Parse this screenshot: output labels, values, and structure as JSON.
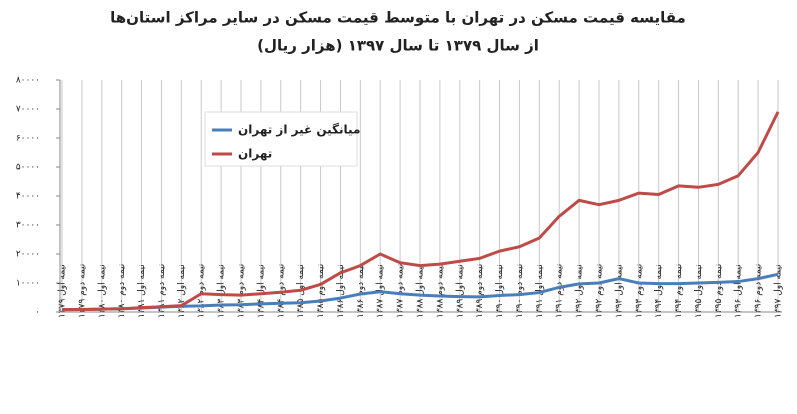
{
  "chart_data": {
    "type": "line",
    "title": "مقایسه قیمت مسکن در تهران با متوسط قیمت مسکن در سایر مراکز استان‌ها",
    "subtitle": "از سال ۱۳۷۹ تا سال ۱۳۹۷ (هزار ریال)",
    "categories": [
      "نیمه اول ۱۳۷۹",
      "نیمه دوم ۱۳۷۹",
      "نیمه اول ۱۳۸۰",
      "نیمه دوم ۱۳۸۰",
      "نیمه اول ۱۳۸۱",
      "نیمه دوم ۱۳۸۱",
      "نیمه اول ۱۳۸۲",
      "نیمه دوم ۱۳۸۲",
      "نیمه اول ۱۳۸۳",
      "نیمه دوم ۱۳۸۳",
      "نیمه اول ۱۳۸۴",
      "نیمه دوم ۱۳۸۴",
      "نیمه اول ۱۳۸۵",
      "نیمه دوم ۱۳۸۵",
      "نیمه اول ۱۳۸۶",
      "نیمه دوم ۱۳۸۶",
      "نیمه اول ۱۳۸۷",
      "نیمه دوم ۱۳۸۷",
      "نیمه اول ۱۳۸۸",
      "نیمه دوم ۱۳۸۸",
      "نیمه اول ۱۳۸۹",
      "نیمه دوم ۱۳۸۹",
      "نیمه اول ۱۳۹۰",
      "نیمه دوم ۱۳۹۰",
      "نیمه اول ۱۳۹۱",
      "نیمه دوم ۱۳۹۱",
      "نیمه اول ۱۳۹۲",
      "نیمه دوم ۱۳۹۲",
      "نیمه اول ۱۳۹۳",
      "نیمه دوم ۱۳۹۳",
      "نیمه اول ۱۳۹۴",
      "نیمه دوم ۱۳۹۴",
      "نیمه اول ۱۳۹۵",
      "نیمه دوم ۱۳۹۵",
      "نیمه اول ۱۳۹۶",
      "نیمه دوم ۱۳۹۶",
      "نیمه اول ۱۳۹۷"
    ],
    "series": [
      {
        "name": "میانگین غیر از تهران",
        "color": "#4a7ebb",
        "values": [
          800,
          850,
          1000,
          1100,
          1400,
          1700,
          2000,
          2100,
          2400,
          2500,
          2800,
          3000,
          3200,
          3800,
          4800,
          6200,
          7000,
          6300,
          5800,
          5500,
          5300,
          5200,
          5700,
          6000,
          6700,
          8500,
          9700,
          10000,
          11500,
          10000,
          9800,
          9800,
          10000,
          10200,
          10500,
          11500,
          13000
        ]
      },
      {
        "name": "تهران",
        "color": "#be4b48",
        "values": [
          800,
          850,
          1000,
          1100,
          1500,
          1800,
          2200,
          6300,
          6000,
          5800,
          6300,
          6800,
          7500,
          9500,
          13500,
          16000,
          20000,
          17000,
          16000,
          16500,
          17500,
          18500,
          21000,
          22500,
          25500,
          33000,
          38500,
          37000,
          38500,
          41000,
          40500,
          43500,
          43000,
          44000,
          47000,
          55000,
          69000
        ]
      }
    ],
    "ylim": [
      0,
      80000
    ],
    "yticks": [
      {
        "value": 0,
        "label": "۰"
      },
      {
        "value": 10000,
        "label": "۱۰۰۰۰"
      },
      {
        "value": 20000,
        "label": "۲۰۰۰۰"
      },
      {
        "value": 30000,
        "label": "۳۰۰۰۰"
      },
      {
        "value": 40000,
        "label": "۴۰۰۰۰"
      },
      {
        "value": 50000,
        "label": "۵۰۰۰۰"
      },
      {
        "value": 60000,
        "label": "۶۰۰۰۰"
      },
      {
        "value": 70000,
        "label": "۷۰۰۰۰"
      },
      {
        "value": 80000,
        "label": "۸۰۰۰۰"
      }
    ],
    "grid": "x"
  }
}
